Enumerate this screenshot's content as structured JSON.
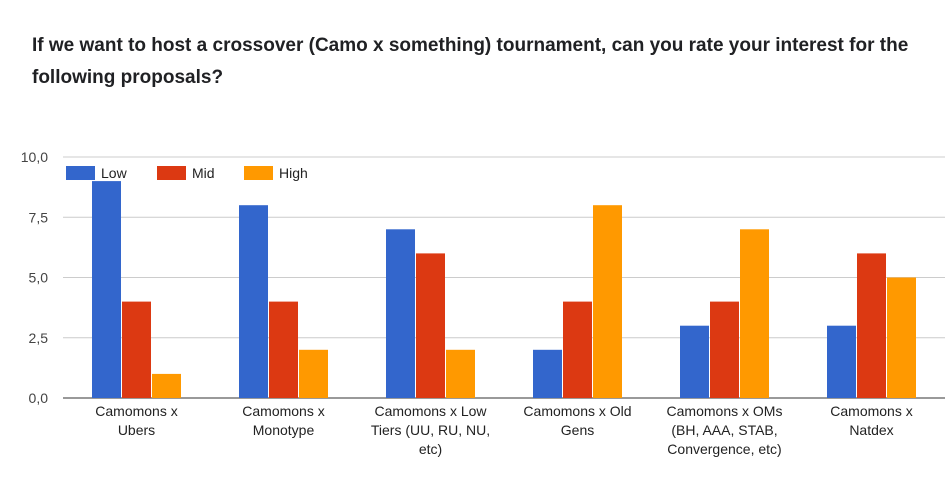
{
  "title": "If we want to host a crossover (Camo x something) tournament, can you rate your interest for the following proposals?",
  "chart_data": {
    "type": "bar",
    "title": "If we want to host a crossover (Camo x something) tournament, can you rate your interest for the following proposals?",
    "categories": [
      [
        "Camomons x",
        "Ubers"
      ],
      [
        "Camomons x",
        "Monotype"
      ],
      [
        "Camomons x Low",
        "Tiers (UU, RU, NU,",
        "etc)"
      ],
      [
        "Camomons x Old",
        "Gens"
      ],
      [
        "Camomons x OMs",
        "(BH, AAA, STAB,",
        "Convergence, etc)"
      ],
      [
        "Camomons x",
        "Natdex"
      ]
    ],
    "series": [
      {
        "name": "Low",
        "color": "#3366cc",
        "values": [
          9,
          8,
          7,
          2,
          3,
          3
        ]
      },
      {
        "name": "Mid",
        "color": "#dc3912",
        "values": [
          4,
          4,
          6,
          4,
          4,
          6
        ]
      },
      {
        "name": "High",
        "color": "#ff9900",
        "values": [
          1,
          2,
          2,
          8,
          7,
          5
        ]
      }
    ],
    "ylim": [
      0,
      10
    ],
    "yticks": [
      "0,0",
      "2,5",
      "5,0",
      "7,5",
      "10,0"
    ],
    "ytick_values": [
      0,
      2.5,
      5,
      7.5,
      10
    ],
    "legend_position": "top-left",
    "grid": true
  }
}
